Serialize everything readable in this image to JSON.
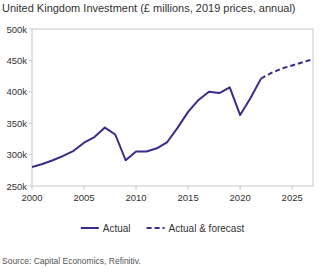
{
  "chart_data": {
    "type": "line",
    "title": "United Kingdom Investment (£ millions, 2019 prices, annual)",
    "source": "Source: Capital Economics, Refinitiv.",
    "x": [
      2000,
      2001,
      2002,
      2003,
      2004,
      2005,
      2006,
      2007,
      2008,
      2009,
      2010,
      2011,
      2012,
      2013,
      2014,
      2015,
      2016,
      2017,
      2018,
      2019,
      2020,
      2021,
      2022,
      2023,
      2024,
      2025,
      2026,
      2027
    ],
    "series": [
      {
        "name": "Actual",
        "color": "#3b2a8c",
        "line_style": "solid",
        "values": [
          280000,
          285000,
          291000,
          298000,
          306000,
          319000,
          328000,
          343000,
          332000,
          291000,
          305000,
          305000,
          310000,
          320000,
          343000,
          368000,
          387000,
          400000,
          398000,
          407000,
          363000,
          390000,
          421000,
          null,
          null,
          null,
          null,
          null
        ]
      },
      {
        "name": "Actual & forecast",
        "color": "#3b2a8c",
        "line_style": "dashed",
        "values": [
          null,
          null,
          null,
          null,
          null,
          null,
          null,
          null,
          null,
          null,
          null,
          null,
          null,
          null,
          null,
          null,
          null,
          null,
          null,
          null,
          null,
          null,
          421000,
          430000,
          437000,
          442000,
          447000,
          452000
        ]
      }
    ],
    "xlim": [
      2000,
      2027
    ],
    "xticks": [
      2000,
      2005,
      2010,
      2015,
      2020,
      2025
    ],
    "ylim": [
      250000,
      500000
    ],
    "yticks": [
      {
        "value": 250000,
        "label": "250k"
      },
      {
        "value": 300000,
        "label": "300k"
      },
      {
        "value": 350000,
        "label": "350k"
      },
      {
        "value": 400000,
        "label": "400k"
      },
      {
        "value": 450000,
        "label": "450k"
      },
      {
        "value": 500000,
        "label": "500k"
      }
    ],
    "grid": false,
    "legend": "bottom"
  }
}
